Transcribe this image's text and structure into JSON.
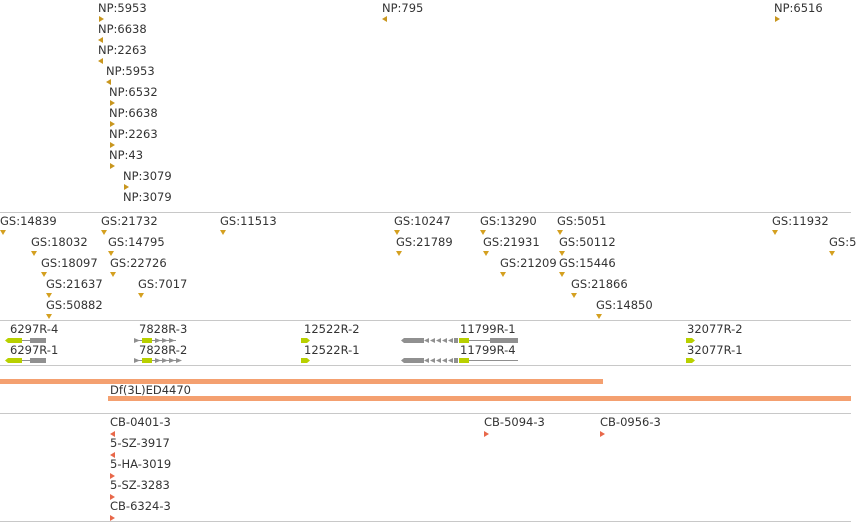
{
  "np_track": {
    "items": [
      {
        "label": "NP:5953",
        "dir": "right"
      },
      {
        "label": "NP:795",
        "dir": "left"
      },
      {
        "label": "NP:6516",
        "dir": "right"
      },
      {
        "label": "NP:6638",
        "dir": "left"
      },
      {
        "label": "NP:2263",
        "dir": "left"
      },
      {
        "label": "NP:5953",
        "dir": "left"
      },
      {
        "label": "NP:6532",
        "dir": "right"
      },
      {
        "label": "NP:6638",
        "dir": "right"
      },
      {
        "label": "NP:2263",
        "dir": "right"
      },
      {
        "label": "NP:43",
        "dir": "right"
      },
      {
        "label": "NP:3079",
        "dir": "right"
      },
      {
        "label": "NP:3079",
        "dir": "right"
      }
    ]
  },
  "gs_track": {
    "items": [
      {
        "label": "GS:14839"
      },
      {
        "label": "GS:21732"
      },
      {
        "label": "GS:11513"
      },
      {
        "label": "GS:10247"
      },
      {
        "label": "GS:13290"
      },
      {
        "label": "GS:5051"
      },
      {
        "label": "GS:11932"
      },
      {
        "label": "GS:5"
      },
      {
        "label": "GS:18032"
      },
      {
        "label": "GS:14795"
      },
      {
        "label": "GS:21789"
      },
      {
        "label": "GS:21931"
      },
      {
        "label": "GS:50112"
      },
      {
        "label": "GS:18097"
      },
      {
        "label": "GS:22726"
      },
      {
        "label": "GS:21209"
      },
      {
        "label": "GS:15446"
      },
      {
        "label": "GS:21637"
      },
      {
        "label": "GS:7017"
      },
      {
        "label": "GS:21866"
      },
      {
        "label": "GS:50882"
      },
      {
        "label": "GS:14850"
      }
    ]
  },
  "transcript_track": {
    "items": [
      {
        "label": "6297R-4"
      },
      {
        "label": "6297R-1"
      },
      {
        "label": "7828R-3"
      },
      {
        "label": "7828R-2"
      },
      {
        "label": "12522R-2"
      },
      {
        "label": "12522R-1"
      },
      {
        "label": "11799R-1"
      },
      {
        "label": "11799R-4"
      },
      {
        "label": "32077R-2"
      },
      {
        "label": "32077R-1"
      }
    ]
  },
  "deficiency_track": {
    "items": [
      {
        "label": ""
      },
      {
        "label": "Df(3L)ED4470"
      }
    ]
  },
  "cb_track": {
    "items": [
      {
        "label": "CB-0401-3",
        "dir": "left"
      },
      {
        "label": "CB-5094-3",
        "dir": "right"
      },
      {
        "label": "CB-0956-3",
        "dir": "right"
      },
      {
        "label": "5-SZ-3917",
        "dir": "left"
      },
      {
        "label": "5-HA-3019",
        "dir": "right"
      },
      {
        "label": "5-SZ-3283",
        "dir": "right"
      },
      {
        "label": "CB-6324-3",
        "dir": "right"
      }
    ]
  },
  "colors": {
    "np_marker": "#c8961e",
    "gs_marker": "#d4a020",
    "exon_gray": "#909090",
    "exon_yellow": "#b8d000",
    "deficiency_bar": "#f4a070",
    "cb_marker": "#e8684a",
    "separator": "#c8c8c8"
  }
}
